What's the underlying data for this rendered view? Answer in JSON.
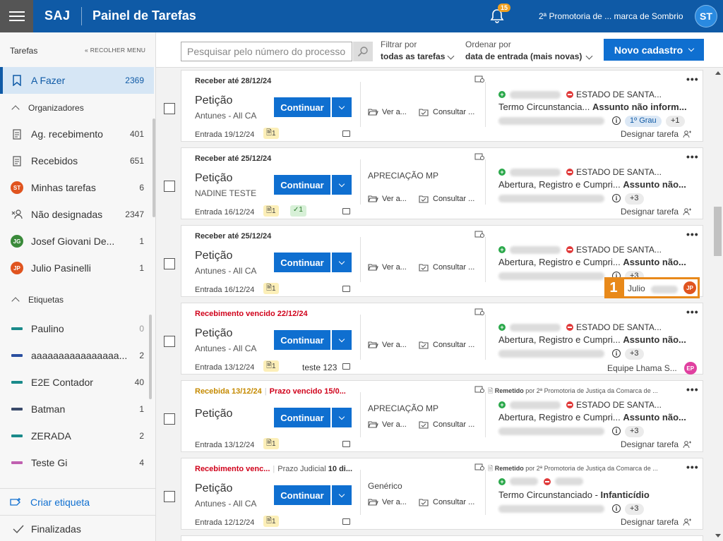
{
  "header": {
    "brand": "SAJ",
    "title": "Painel de Tarefas",
    "notification_count": "15",
    "org": "2ª Promotoria de ... marca de Sombrio",
    "user_initials": "ST"
  },
  "sidebar": {
    "title": "Tarefas",
    "collapse_label": "RECOLHER MENU",
    "active": {
      "label": "A Fazer",
      "count": "2369"
    },
    "organizers_label": "Organizadores",
    "items": [
      {
        "label": "Ag. recebimento",
        "count": "401"
      },
      {
        "label": "Recebidos",
        "count": "651"
      },
      {
        "label": "Minhas tarefas",
        "count": "6",
        "initials": "ST"
      },
      {
        "label": "Não designadas",
        "count": "2347"
      },
      {
        "label": "Josef Giovani De...",
        "count": "1",
        "initials": "JG"
      },
      {
        "label": "Julio Pasinelli",
        "count": "1",
        "initials": "JP"
      }
    ],
    "tags_label": "Etiquetas",
    "tags": [
      {
        "label": "Paulino",
        "count": "0",
        "color": "#1a8a8a"
      },
      {
        "label": "aaaaaaaaaaaaaaaa...",
        "count": "2",
        "color": "#2a4fa0"
      },
      {
        "label": "E2E Contador",
        "count": "40",
        "color": "#1a8a8a"
      },
      {
        "label": "Batman",
        "count": "1",
        "color": "#3a4a6a"
      },
      {
        "label": "ZERADA",
        "count": "2",
        "color": "#1a8a8a"
      },
      {
        "label": "Teste Gi",
        "count": "4",
        "color": "#c060b0"
      }
    ],
    "create_tag": "Criar etiqueta",
    "finished": "Finalizadas"
  },
  "toolbar": {
    "search_placeholder": "Pesquisar pelo número do processo",
    "filter_label": "Filtrar por",
    "filter_value": "todas as tarefas",
    "order_label": "Ordenar por",
    "order_value": "data de entrada (mais novas)",
    "new_button": "Novo cadastro"
  },
  "common": {
    "continue": "Continuar",
    "view": "Ver a...",
    "consult": "Consultar ...",
    "designate": "Designar tarefa",
    "state": "ESTADO DE SANTA...",
    "remetido_pre": "Remetido",
    "remetido_post": "por 2ª Promotoria de Justiça da Comarca de ..."
  },
  "cards": [
    {
      "header": "Receber até 28/12/24",
      "type": "Petição",
      "sub": "Antunes - All CA",
      "entry": "Entrada 19/12/24",
      "doc_count": "1",
      "stage": "",
      "subject_a": "Termo Circunstancia...",
      "subject_b": "Assunto não inform...",
      "grau": "1º Grau",
      "more": "+1"
    },
    {
      "header": "Receber até 25/12/24",
      "type": "Petição",
      "sub": "NADINE TESTE",
      "entry": "Entrada 16/12/24",
      "doc_count": "1",
      "ok_count": "1",
      "stage": "APRECIAÇÃO MP",
      "subject_a": "Abertura, Registro e Cumpri...",
      "subject_b": "Assunto não...",
      "more": "+3"
    },
    {
      "header": "Receber até 25/12/24",
      "type": "Petição",
      "sub": "Antunes - All CA",
      "entry": "Entrada 16/12/24",
      "doc_count": "1",
      "stage": "",
      "subject_a": "Abertura, Registro e Cumpri...",
      "subject_b": "Assunto não...",
      "more": "+3"
    },
    {
      "header": "Recebimento vencido 22/12/24",
      "type": "Petição",
      "sub": "Antunes - All CA",
      "entry": "Entrada 13/12/24",
      "doc_count": "1",
      "note": "teste 123",
      "stage": "",
      "subject_a": "Abertura, Registro e Cumpri...",
      "subject_b": "Assunto não...",
      "more": "+3",
      "team": "Equipe Lhama S...",
      "team_initials": "EP"
    },
    {
      "header_gold": "Recebida 13/12/24",
      "header_red": "Prazo vencido 15/0...",
      "type": "Petição",
      "sub": "",
      "entry": "Entrada 13/12/24",
      "doc_count": "1",
      "stage": "APRECIAÇÃO MP",
      "subject_a": "Abertura, Registro e Cumpri...",
      "subject_b": "Assunto não...",
      "more": "+3"
    },
    {
      "header_red": "Recebimento venc...",
      "header_plain": "Prazo Judicial",
      "header_bold": "10 di...",
      "type": "Petição",
      "sub": "Antunes - All CA",
      "entry": "Entrada 12/12/24",
      "doc_count": "1",
      "stage": "Genérico",
      "subject_a": "Termo Circunstanciado",
      "subject_b": "Infanticídio",
      "more": "+3"
    }
  ],
  "highlight": {
    "number": "1",
    "name": "Julio",
    "initials": "JP"
  }
}
